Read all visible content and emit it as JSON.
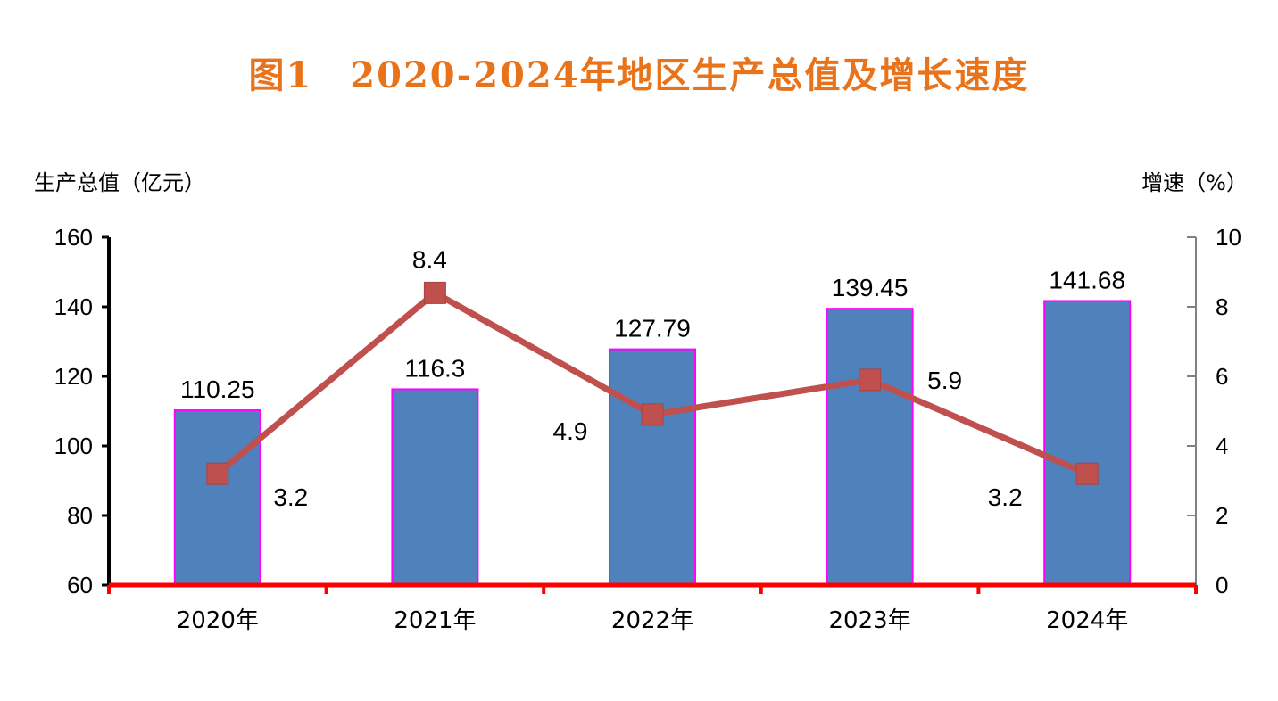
{
  "title": "图1　2020-2024年地区生产总值及增长速度",
  "left_axis_title": "生产总值（亿元）",
  "right_axis_title": "增速（%）",
  "colors": {
    "bar_fill": "#4f81bd",
    "bar_border": "#ff00ff",
    "line": "#c0504d",
    "x_axis": "#ff0000",
    "left_axis": "#000000",
    "right_axis": "#808080",
    "title": "#e8731a"
  },
  "chart_data": {
    "type": "bar",
    "categories": [
      "2020年",
      "2021年",
      "2022年",
      "2023年",
      "2024年"
    ],
    "series": [
      {
        "type": "bar",
        "axis": "left",
        "values": [
          110.25,
          116.3,
          127.79,
          139.45,
          141.68
        ],
        "labels": [
          "110.25",
          "116.3",
          "127.79",
          "139.45",
          "141.68"
        ]
      },
      {
        "type": "line",
        "axis": "right",
        "marker": "square",
        "values": [
          3.2,
          8.4,
          4.9,
          5.9,
          3.2
        ],
        "labels": [
          "3.2",
          "8.4",
          "4.9",
          "5.9",
          "3.2"
        ]
      }
    ],
    "left_axis": {
      "min": 60,
      "max": 160,
      "ticks": [
        "60",
        "80",
        "100",
        "120",
        "140",
        "160"
      ]
    },
    "right_axis": {
      "min": 0,
      "max": 10,
      "ticks": [
        "0",
        "2",
        "4",
        "6",
        "8",
        "10"
      ]
    },
    "grid": false,
    "legend": "none"
  }
}
